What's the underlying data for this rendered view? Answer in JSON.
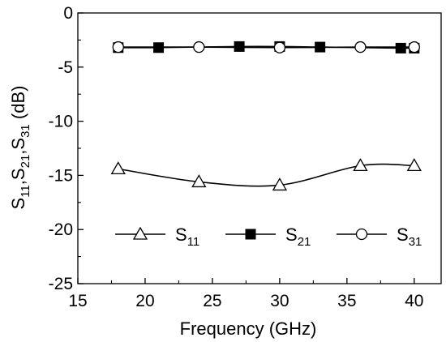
{
  "chart_data": {
    "type": "line",
    "xlabel": "Frequency (GHz)",
    "ylabel": "S11,S21,S31 (dB)",
    "xlim": [
      15,
      42
    ],
    "ylim": [
      -25,
      0
    ],
    "x_ticks": [
      15,
      20,
      25,
      30,
      35,
      40
    ],
    "y_ticks": [
      0,
      -5,
      -10,
      -15,
      -20,
      -25
    ],
    "grid": false,
    "legend_position": "lower-center",
    "series": [
      {
        "name": "S11",
        "name_main": "S",
        "name_sub": "11",
        "marker": "triangle-open",
        "color": "#000000",
        "x": [
          18,
          24,
          30,
          36,
          40
        ],
        "y": [
          -14.4,
          -15.6,
          -15.9,
          -14.1,
          -14.1
        ]
      },
      {
        "name": "S21",
        "name_main": "S",
        "name_sub": "21",
        "marker": "square-filled",
        "color": "#000000",
        "x": [
          18,
          21,
          27,
          30,
          33,
          39,
          40
        ],
        "y": [
          -3.2,
          -3.2,
          -3.1,
          -3.1,
          -3.15,
          -3.25,
          -3.25
        ]
      },
      {
        "name": "S31",
        "name_main": "S",
        "name_sub": "31",
        "marker": "circle-open",
        "color": "#000000",
        "x": [
          18,
          24,
          30,
          36,
          40
        ],
        "y": [
          -3.15,
          -3.15,
          -3.2,
          -3.15,
          -3.15
        ]
      }
    ]
  }
}
